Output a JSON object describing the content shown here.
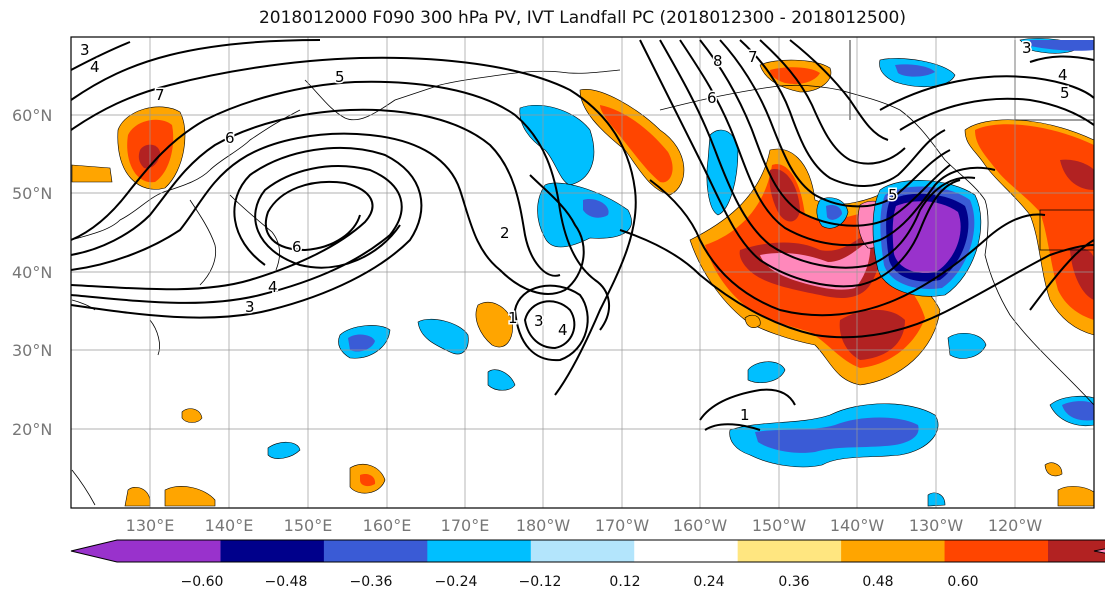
{
  "title": "2018012000 F090 300 hPa PV, IVT Landfall PC (2018012300 - 2018012500)",
  "lat_labels": [
    "60°N",
    "50°N",
    "40°N",
    "30°N",
    "20°N"
  ],
  "lon_labels": [
    "130°E",
    "140°E",
    "150°E",
    "160°E",
    "170°E",
    "180°W",
    "170°W",
    "160°W",
    "150°W",
    "140°W",
    "130°W",
    "120°W"
  ],
  "colorbar": {
    "ticks": [
      "−0.60",
      "−0.48",
      "−0.36",
      "−0.24",
      "−0.12",
      "0.12",
      "0.24",
      "0.36",
      "0.48",
      "0.60"
    ],
    "colors": [
      "#9932cc",
      "#00008b",
      "#3a5bd6",
      "#00bfff",
      "#b3e5fc",
      "#ffffff",
      "#ffe680",
      "#ffa500",
      "#ff4500",
      "#b22222",
      "#ff88bb"
    ]
  },
  "contour_labels": [
    "3",
    "4",
    "5",
    "7",
    "6",
    "6",
    "3",
    "4",
    "2",
    "1",
    "3",
    "4",
    "8",
    "7",
    "6",
    "5",
    "3",
    "4",
    "5",
    "1"
  ]
}
